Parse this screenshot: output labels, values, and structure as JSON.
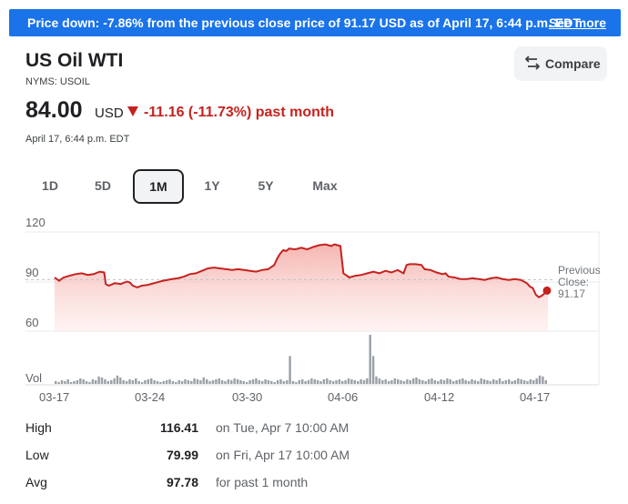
{
  "banner": {
    "message": "Price down: -7.86% from the previous close price of 91.17 USD as of April 17, 6:44 p.m. EDT",
    "see_more": "See more"
  },
  "header": {
    "name": "US Oil WTI",
    "ticker": "NYMS: USOIL",
    "compare_label": "Compare",
    "compare_icon": "swap-arrows-icon"
  },
  "quote": {
    "price": "84.00",
    "currency": "USD",
    "change": "-11.16 (-11.73%) past month",
    "change_color": "#c5221f",
    "timestamp": "April 17, 6:44 p.m. EDT"
  },
  "tabs": [
    {
      "label": "1D",
      "active": false
    },
    {
      "label": "5D",
      "active": false
    },
    {
      "label": "1M",
      "active": true
    },
    {
      "label": "1Y",
      "active": false
    },
    {
      "label": "5Y",
      "active": false
    },
    {
      "label": "Max",
      "active": false
    }
  ],
  "chart_data": {
    "type": "area",
    "y_ticks": [
      "120",
      "90",
      "60"
    ],
    "ylim": [
      60,
      120
    ],
    "vol_label": "Vol",
    "x_ticks": [
      "03-17",
      "03-24",
      "03-30",
      "04-06",
      "04-12",
      "04-17"
    ],
    "previous_close": {
      "label_line1": "Previous",
      "label_line2": "Close:",
      "value": "91.17",
      "y": 91.17
    },
    "line_color": "#c5221f",
    "fill_color": "#f7c6c2",
    "series": [
      {
        "values": [
          [
            0,
            92.5
          ],
          [
            1.5,
            90.5
          ],
          [
            3,
            92.5
          ],
          [
            5,
            93.5
          ],
          [
            7,
            94.5
          ],
          [
            9,
            95
          ],
          [
            11,
            94
          ],
          [
            13,
            94.5
          ],
          [
            15,
            96
          ],
          [
            16.5,
            95.5
          ],
          [
            17,
            88.5
          ],
          [
            18,
            87.5
          ],
          [
            20,
            89
          ],
          [
            22,
            88.5
          ],
          [
            24,
            90
          ],
          [
            25,
            89.5
          ],
          [
            26,
            87.5
          ],
          [
            27.5,
            86.5
          ],
          [
            29,
            87.5
          ],
          [
            31,
            88
          ],
          [
            33,
            89
          ],
          [
            36,
            90.5
          ],
          [
            39,
            91.5
          ],
          [
            41,
            92
          ],
          [
            43,
            93
          ],
          [
            45,
            94.5
          ],
          [
            47,
            95
          ],
          [
            49,
            96.5
          ],
          [
            51,
            98
          ],
          [
            53,
            98.5
          ],
          [
            55,
            98
          ],
          [
            57,
            97.5
          ],
          [
            59,
            97
          ],
          [
            61,
            97.5
          ],
          [
            63,
            97
          ],
          [
            65,
            96.5
          ],
          [
            67,
            96
          ],
          [
            69,
            97
          ],
          [
            71,
            97.5
          ],
          [
            73,
            100
          ],
          [
            74,
            104
          ],
          [
            75,
            107
          ],
          [
            76,
            109
          ],
          [
            77,
            108.5
          ],
          [
            78,
            110
          ],
          [
            80,
            109.5
          ],
          [
            82,
            110.5
          ],
          [
            84,
            109.5
          ],
          [
            86,
            111
          ],
          [
            88,
            112
          ],
          [
            90,
            112.5
          ],
          [
            92,
            111.5
          ],
          [
            93,
            112.5
          ],
          [
            94,
            112
          ],
          [
            95,
            111.5
          ],
          [
            96,
            95
          ],
          [
            98,
            92.5
          ],
          [
            100,
            93.5
          ],
          [
            102,
            94
          ],
          [
            104,
            95
          ],
          [
            106,
            96
          ],
          [
            108,
            95
          ],
          [
            110,
            96.5
          ],
          [
            112,
            95.5
          ],
          [
            114,
            97
          ],
          [
            116,
            95
          ],
          [
            117,
            100
          ],
          [
            118,
            100.5
          ],
          [
            120,
            100.5
          ],
          [
            122,
            100
          ],
          [
            123,
            97.5
          ],
          [
            125,
            97
          ],
          [
            127,
            95.5
          ],
          [
            129,
            94.5
          ],
          [
            130,
            95
          ],
          [
            131,
            93
          ],
          [
            133,
            92.5
          ],
          [
            135,
            91.5
          ],
          [
            137,
            91.5
          ],
          [
            139,
            92
          ],
          [
            141,
            91.5
          ],
          [
            143,
            91
          ],
          [
            145,
            92
          ],
          [
            147,
            92.5
          ],
          [
            149,
            91.5
          ],
          [
            151,
            91
          ],
          [
            153,
            91.5
          ],
          [
            155,
            91
          ],
          [
            157,
            89
          ],
          [
            158,
            87
          ],
          [
            159,
            86
          ],
          [
            160,
            82
          ],
          [
            161,
            80.5
          ],
          [
            162,
            81.5
          ],
          [
            163,
            83
          ],
          [
            164,
            84
          ]
        ]
      }
    ],
    "volume": [
      3,
      2,
      4,
      3,
      5,
      2,
      3,
      4,
      6,
      5,
      3,
      2,
      5,
      4,
      8,
      7,
      5,
      3,
      4,
      6,
      9,
      7,
      4,
      3,
      5,
      4,
      6,
      3,
      2,
      4,
      5,
      6,
      4,
      3,
      2,
      3,
      4,
      5,
      3,
      2,
      4,
      3,
      5,
      4,
      3,
      6,
      5,
      4,
      7,
      5,
      3,
      4,
      5,
      6,
      4,
      3,
      5,
      4,
      6,
      5,
      4,
      3,
      2,
      4,
      5,
      6,
      4,
      3,
      5,
      4,
      3,
      2,
      4,
      5,
      3,
      4,
      30,
      3,
      2,
      4,
      5,
      3,
      4,
      6,
      5,
      4,
      3,
      5,
      6,
      4,
      3,
      4,
      5,
      3,
      4,
      6,
      5,
      4,
      3,
      5,
      4,
      6,
      53,
      30,
      8,
      6,
      4,
      5,
      3,
      4,
      6,
      5,
      4,
      3,
      5,
      4,
      6,
      7,
      5,
      4,
      3,
      5,
      6,
      4,
      3,
      5,
      4,
      6,
      5,
      3,
      4,
      5,
      6,
      4,
      3,
      5,
      4,
      3,
      6,
      5,
      4,
      3,
      5,
      4,
      6,
      3,
      4,
      5,
      3,
      4,
      6,
      5,
      4,
      3,
      5,
      4,
      6,
      9,
      8,
      4
    ]
  },
  "stats": [
    {
      "label": "High",
      "value": "116.41",
      "note": "on Tue, Apr 7 10:00 AM"
    },
    {
      "label": "Low",
      "value": "79.99",
      "note": "on Fri, Apr 17 10:00 AM"
    },
    {
      "label": "Avg",
      "value": "97.78",
      "note": "for past 1 month"
    }
  ]
}
